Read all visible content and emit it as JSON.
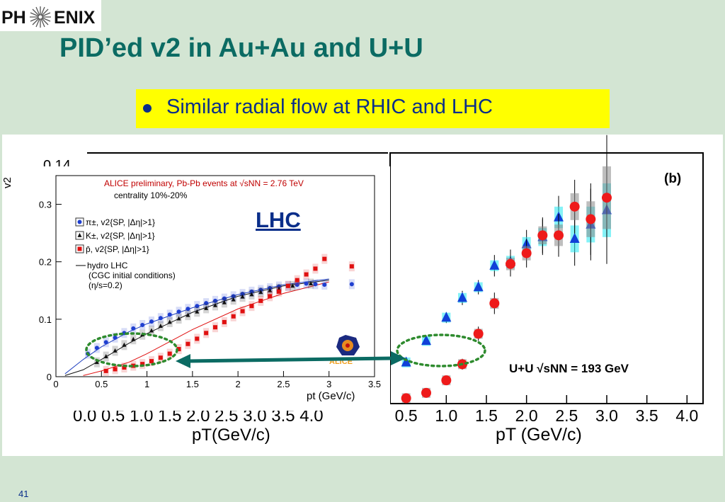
{
  "logo": {
    "left": "PH",
    "right": "ENIX",
    "icon": "phoenix-burst-icon"
  },
  "title": "PID’ed v2 in Au+Au and U+U",
  "bullet": "Similar radial flow at RHIC and LHC",
  "page_number": "41",
  "overlay_label": "LHC",
  "colors": {
    "title": "#0b6b63",
    "bullet_text": "#0a2e8a",
    "highlight": "#ffff00",
    "background": "#d3e5d3",
    "arrow": "#0b6b63",
    "circle": "#2e8b2e"
  },
  "chart_data": [
    {
      "type": "scatter",
      "panel": "LHC (ALICE)",
      "title": "ALICE preliminary, Pb-Pb events at √sNN = 2.76 TeV",
      "subtitle": "centrality 10%-20%",
      "xlabel": "pt (GeV/c)",
      "ylabel": "v2",
      "xlim": [
        0,
        3.5
      ],
      "ylim": [
        0,
        0.35
      ],
      "xticks": [
        "0",
        "0.5",
        "1",
        "1.5",
        "2",
        "2.5",
        "3",
        "3.5"
      ],
      "yticks": [
        "0",
        "0.1",
        "0.2",
        "0.3"
      ],
      "annotation": "ALICE",
      "legend_placement": "top-left",
      "series": [
        {
          "name": "π±, v2{SP, |Δη|>1}",
          "marker": "circle",
          "color": "#1f3fd0",
          "x": [
            0.35,
            0.45,
            0.55,
            0.65,
            0.75,
            0.85,
            0.95,
            1.05,
            1.15,
            1.25,
            1.35,
            1.45,
            1.55,
            1.65,
            1.75,
            1.85,
            1.95,
            2.05,
            2.15,
            2.25,
            2.35,
            2.45,
            2.55,
            2.65,
            2.75,
            2.85,
            2.95,
            3.25
          ],
          "y": [
            0.04,
            0.05,
            0.06,
            0.068,
            0.076,
            0.084,
            0.09,
            0.096,
            0.102,
            0.108,
            0.113,
            0.118,
            0.123,
            0.128,
            0.132,
            0.136,
            0.14,
            0.144,
            0.148,
            0.151,
            0.154,
            0.157,
            0.158,
            0.16,
            0.162,
            0.161,
            0.16,
            0.161
          ]
        },
        {
          "name": "K±, v2{SP, |Δη|>1}",
          "marker": "triangle",
          "color": "#111111",
          "x": [
            0.45,
            0.55,
            0.65,
            0.75,
            0.85,
            0.95,
            1.05,
            1.15,
            1.25,
            1.35,
            1.45,
            1.55,
            1.65,
            1.75,
            1.85,
            1.95,
            2.05,
            2.15,
            2.25,
            2.35,
            2.45,
            2.6,
            2.8
          ],
          "y": [
            0.025,
            0.035,
            0.045,
            0.055,
            0.065,
            0.073,
            0.08,
            0.088,
            0.095,
            0.101,
            0.107,
            0.113,
            0.119,
            0.124,
            0.129,
            0.134,
            0.139,
            0.143,
            0.147,
            0.15,
            0.153,
            0.158,
            0.162
          ]
        },
        {
          "name": "p̄, v2{SP, |Δη|>1}",
          "marker": "square",
          "color": "#e01010",
          "x": [
            0.55,
            0.65,
            0.75,
            0.85,
            0.95,
            1.05,
            1.15,
            1.25,
            1.35,
            1.45,
            1.55,
            1.65,
            1.75,
            1.85,
            1.95,
            2.05,
            2.15,
            2.25,
            2.35,
            2.45,
            2.55,
            2.65,
            2.75,
            2.85,
            2.95,
            3.25
          ],
          "y": [
            0.01,
            0.013,
            0.016,
            0.019,
            0.022,
            0.027,
            0.033,
            0.04,
            0.048,
            0.057,
            0.066,
            0.076,
            0.086,
            0.095,
            0.105,
            0.114,
            0.123,
            0.132,
            0.14,
            0.148,
            0.158,
            0.168,
            0.178,
            0.188,
            0.205,
            0.192
          ]
        }
      ],
      "curves": [
        {
          "name": "hydro LHC (CGC initial conditions) (η/s=0.2)",
          "color": "#2040c0",
          "x": [
            0.1,
            0.3,
            0.5,
            0.8,
            1.0,
            1.5,
            2.0,
            2.5,
            3.0
          ],
          "y": [
            0.005,
            0.03,
            0.052,
            0.078,
            0.092,
            0.12,
            0.143,
            0.16,
            0.17
          ]
        },
        {
          "color": "#111111",
          "x": [
            0.1,
            0.3,
            0.5,
            0.8,
            1.0,
            1.5,
            2.0,
            2.5,
            3.0
          ],
          "y": [
            0.002,
            0.012,
            0.03,
            0.058,
            0.075,
            0.112,
            0.14,
            0.158,
            0.168
          ]
        },
        {
          "color": "#e01010",
          "x": [
            0.3,
            0.5,
            0.8,
            1.0,
            1.5,
            2.0,
            2.5,
            3.0
          ],
          "y": [
            0.002,
            0.01,
            0.025,
            0.04,
            0.082,
            0.118,
            0.145,
            0.165
          ]
        }
      ],
      "legend_extra": [
        "hydro LHC",
        "(CGC initial conditions)",
        "(η/s=0.2)"
      ]
    },
    {
      "type": "scatter",
      "panel": "(b)",
      "annotation": "U+U √sNN = 193 GeV",
      "xlabel": "pT (GeV/c)",
      "xlim": [
        0.3,
        4.2
      ],
      "xticks": [
        "0.5",
        "1.0",
        "1.5",
        "2.0",
        "2.5",
        "3.0",
        "3.5",
        "4.0"
      ],
      "ylim": [
        0,
        0.14
      ],
      "series": [
        {
          "marker": "triangle",
          "color": "#1040d8",
          "x": [
            0.5,
            0.75,
            1.0,
            1.2,
            1.4,
            1.6,
            1.8,
            2.0,
            2.2,
            2.4,
            2.6,
            2.8,
            3.0
          ],
          "y": [
            0.023,
            0.035,
            0.048,
            0.059,
            0.065,
            0.077,
            0.079,
            0.089,
            0.093,
            0.104,
            0.092,
            0.1,
            0.108
          ],
          "err": [
            0.002,
            0.002,
            0.003,
            0.004,
            0.004,
            0.006,
            0.007,
            0.008,
            0.01,
            0.012,
            0.015,
            0.02,
            0.03
          ]
        },
        {
          "marker": "circle",
          "color": "#ee1a1a",
          "x": [
            0.5,
            0.75,
            1.0,
            1.2,
            1.4,
            1.6,
            1.8,
            2.0,
            2.2,
            2.4,
            2.6,
            2.8,
            3.0
          ],
          "y": [
            0.003,
            0.006,
            0.013,
            0.022,
            0.039,
            0.056,
            0.078,
            0.084,
            0.094,
            0.094,
            0.11,
            0.103,
            0.115
          ],
          "err": [
            0.001,
            0.002,
            0.002,
            0.003,
            0.004,
            0.006,
            0.007,
            0.008,
            0.01,
            0.012,
            0.015,
            0.02,
            0.035
          ]
        }
      ]
    }
  ],
  "left_axis_bg": {
    "ylabel": "v2",
    "top_tick_fragment": "0.14",
    "xticks": "0.0 0.5 1.0 1.5 2.0 2.5 3.0 3.5 4.0",
    "xlabel": "pT(GeV/c)"
  }
}
